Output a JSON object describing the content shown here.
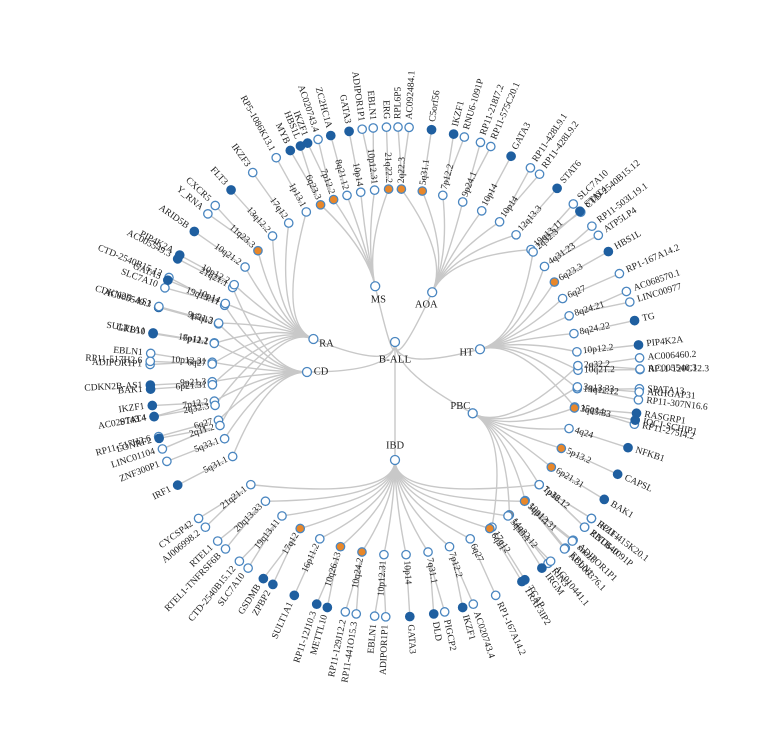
{
  "root": "B-ALL",
  "colors": {
    "edge": "#c8c8c8",
    "open": "#4a86c0",
    "filled": "#1f5fa0",
    "highlight": "#e8872a",
    "text": "#222222"
  },
  "branches": [
    {
      "name": "MS",
      "children": [
        {
          "label": "6q23.3",
          "st": "h",
          "genes": [
            {
              "label": "MYB",
              "st": "f"
            },
            {
              "label": "HBS1L",
              "st": "f"
            }
          ]
        },
        {
          "label": "7p12.2",
          "st": "h",
          "genes": [
            {
              "label": "IKZF1",
              "st": "f"
            },
            {
              "label": "AC020743.4",
              "st": "o"
            }
          ]
        },
        {
          "label": "8q21.12",
          "st": "o",
          "genes": [
            {
              "label": "ZC2HC1A",
              "st": "f"
            }
          ]
        },
        {
          "label": "10p14",
          "st": "o",
          "genes": [
            {
              "label": "GATA3",
              "st": "f"
            }
          ]
        },
        {
          "label": "10p12.31",
          "st": "o",
          "genes": [
            {
              "label": "ADIPOR1P1",
              "st": "o"
            },
            {
              "label": "EBLN1",
              "st": "o"
            }
          ]
        },
        {
          "label": "21q22.2",
          "st": "h",
          "genes": [
            {
              "label": "ERG",
              "st": "o"
            }
          ]
        }
      ]
    },
    {
      "name": "AOA",
      "children": [
        {
          "label": "2q22.3",
          "st": "h",
          "genes": [
            {
              "label": "RPL6P5",
              "st": "o"
            },
            {
              "label": "AC092484.1",
              "st": "o"
            }
          ]
        },
        {
          "label": "5q31.1",
          "st": "h",
          "genes": [
            {
              "label": "C5orf56",
              "st": "f"
            }
          ]
        },
        {
          "label": "7p12.2",
          "st": "o",
          "genes": [
            {
              "label": "IKZF1",
              "st": "f"
            },
            {
              "label": "RNU6-1091P",
              "st": "o"
            }
          ]
        },
        {
          "label": "9p24.1",
          "st": "o",
          "genes": [
            {
              "label": "RP11-218I7.2",
              "st": "o"
            },
            {
              "label": "RP11-575C20.1",
              "st": "o"
            }
          ]
        },
        {
          "label": "10p14",
          "st": "o",
          "genes": [
            {
              "label": "GATA3",
              "st": "f"
            }
          ]
        },
        {
          "label": "10p14",
          "st": "o",
          "genes": [
            {
              "label": "RP11-428L9.1",
              "st": "o"
            },
            {
              "label": "RP11-428L9.2",
              "st": "o"
            }
          ]
        },
        {
          "label": "12q13.3",
          "st": "o",
          "genes": [
            {
              "label": "STAT6",
              "st": "f"
            }
          ]
        },
        {
          "label": "19q13.11",
          "st": "o",
          "genes": [
            {
              "label": "SLC7A10",
              "st": "o"
            },
            {
              "label": "CTD-2540B15.12",
              "st": "o"
            }
          ]
        }
      ]
    },
    {
      "name": "HT",
      "children": [
        {
          "label": "2q32.3",
          "st": "o",
          "genes": [
            {
              "label": "STAT4",
              "st": "f"
            }
          ]
        },
        {
          "label": "4q31.23",
          "st": "o",
          "genes": [
            {
              "label": "RP11-503L19.1",
              "st": "o"
            },
            {
              "label": "ATP5LP4",
              "st": "o"
            }
          ]
        },
        {
          "label": "6q23.3",
          "st": "h",
          "genes": [
            {
              "label": "HBS1L",
              "st": "f"
            }
          ]
        },
        {
          "label": "6q27",
          "st": "o",
          "genes": [
            {
              "label": "RP1-167A14.2",
              "st": "o"
            }
          ]
        },
        {
          "label": "8q24.21",
          "st": "o",
          "genes": [
            {
              "label": "AC068570.1",
              "st": "o"
            },
            {
              "label": "LINC00977",
              "st": "o"
            }
          ]
        },
        {
          "label": "8q24.22",
          "st": "o",
          "genes": [
            {
              "label": "TG",
              "st": "f"
            }
          ]
        },
        {
          "label": "10p12.2",
          "st": "o",
          "genes": [
            {
              "label": "PIP4K2A",
              "st": "f"
            }
          ]
        },
        {
          "label": "10q21.2",
          "st": "o",
          "genes": [
            {
              "label": "RP11-120C12.3",
              "st": "o"
            }
          ]
        },
        {
          "label": "13q12.12",
          "st": "o",
          "genes": [
            {
              "label": "SPATA13",
              "st": "o"
            },
            {
              "label": "RP11-307N16.6",
              "st": "o"
            }
          ]
        },
        {
          "label": "15q14",
          "st": "o",
          "genes": [
            {
              "label": "RASGRP1",
              "st": "f"
            },
            {
              "label": "RP11-275I4.2",
              "st": "o"
            }
          ]
        }
      ]
    },
    {
      "name": "PBC",
      "children": [
        {
          "label": "2q32.2",
          "st": "o",
          "genes": [
            {
              "label": "AC006460.2",
              "st": "o"
            },
            {
              "label": "AC005540.3",
              "st": "o"
            }
          ]
        },
        {
          "label": "3q13.33",
          "st": "o",
          "genes": [
            {
              "label": "ARHGAP31",
              "st": "o"
            }
          ]
        },
        {
          "label": "3q25.33",
          "st": "h",
          "genes": [
            {
              "label": "IQCJ-SCHIP1",
              "st": "f"
            }
          ]
        },
        {
          "label": "4q24",
          "st": "o",
          "genes": [
            {
              "label": "NFKB1",
              "st": "f"
            }
          ]
        },
        {
          "label": "5p13.2",
          "st": "h",
          "genes": [
            {
              "label": "CAPSL",
              "st": "f"
            }
          ]
        },
        {
          "label": "6p21.31",
          "st": "h",
          "genes": [
            {
              "label": "BAK1",
              "st": "f"
            }
          ]
        },
        {
          "label": "7p12.1",
          "st": "o",
          "genes": [
            {
              "label": "IKZF1",
              "st": "f"
            },
            {
              "label": "RNU6-1091P",
              "st": "o"
            }
          ]
        },
        {
          "label": "10p12.31",
          "st": "o",
          "genes": [
            {
              "label": "ADIPOR1P1",
              "st": "o"
            },
            {
              "label": "EBLN1",
              "st": "o"
            }
          ]
        },
        {
          "label": "14q32.12",
          "st": "h",
          "genes": [
            {
              "label": "RIN3",
              "st": "o"
            }
          ]
        },
        {
          "label": "17q12",
          "st": "o",
          "genes": [
            {
              "label": "TCAP",
              "st": "f"
            }
          ]
        }
      ]
    },
    {
      "name": "IBD",
      "children": [
        {
          "label": "1p36.12",
          "st": "o",
          "genes": [
            {
              "label": "RP11-415K20.1",
              "st": "o"
            },
            {
              "label": "ZBTB40",
              "st": "o"
            }
          ]
        },
        {
          "label": "5q31.1",
          "st": "h",
          "genes": [
            {
              "label": "snoz6",
              "st": "o"
            },
            {
              "label": "AC006376.1",
              "st": "o"
            }
          ]
        },
        {
          "label": "5q35.1",
          "st": "o",
          "genes": [
            {
              "label": "AC010441.1",
              "st": "o"
            },
            {
              "label": "IRGM",
              "st": "f"
            }
          ]
        },
        {
          "label": "6q21",
          "st": "h",
          "genes": [
            {
              "label": "TRAF3IP2",
              "st": "f"
            }
          ]
        },
        {
          "label": "6q27",
          "st": "o",
          "genes": [
            {
              "label": "RP1-167A14.2",
              "st": "o"
            }
          ]
        },
        {
          "label": "7p12.2",
          "st": "o",
          "genes": [
            {
              "label": "AC020743.4",
              "st": "o"
            },
            {
              "label": "IKZF1",
              "st": "f"
            }
          ]
        },
        {
          "label": "7q31.1",
          "st": "o",
          "genes": [
            {
              "label": "PIGCP2",
              "st": "o"
            },
            {
              "label": "DLD",
              "st": "f"
            }
          ]
        },
        {
          "label": "10p14",
          "st": "o",
          "genes": [
            {
              "label": "GATA3",
              "st": "f"
            }
          ]
        },
        {
          "label": "10p12.31",
          "st": "o",
          "genes": [
            {
              "label": "ADIPOR1P1",
              "st": "o"
            },
            {
              "label": "EBLN1",
              "st": "o"
            }
          ]
        },
        {
          "label": "10q24.2",
          "st": "h",
          "genes": [
            {
              "label": "RP11-441O15.3",
              "st": "o"
            },
            {
              "label": "RP11-129J12.2",
              "st": "o"
            }
          ]
        },
        {
          "label": "10q26.13",
          "st": "h",
          "genes": [
            {
              "label": "METTL10",
              "st": "f"
            },
            {
              "label": "RP11-12J10.3",
              "st": "f"
            }
          ]
        },
        {
          "label": "16p11.2",
          "st": "o",
          "genes": [
            {
              "label": "SULT1A1",
              "st": "f"
            }
          ]
        },
        {
          "label": "17q12",
          "st": "h",
          "genes": [
            {
              "label": "ZPBP2",
              "st": "f"
            },
            {
              "label": "GSDMB",
              "st": "f"
            }
          ]
        },
        {
          "label": "19q13.11",
          "st": "o",
          "genes": [
            {
              "label": "SLC7A10",
              "st": "o"
            },
            {
              "label": "CTD-2540B15.12",
              "st": "o"
            }
          ]
        },
        {
          "label": "20q13.33",
          "st": "o",
          "genes": [
            {
              "label": "RTEL1-TNFRSF6B",
              "st": "o"
            },
            {
              "label": "RTEL1",
              "st": "o"
            }
          ]
        },
        {
          "label": "21q21.1",
          "st": "o",
          "genes": [
            {
              "label": "AJ006998.2",
              "st": "o"
            },
            {
              "label": "CYCSP42",
              "st": "o"
            }
          ]
        }
      ]
    },
    {
      "name": "CD",
      "children": [
        {
          "label": "5q31.1",
          "st": "o",
          "genes": [
            {
              "label": "IRF1",
              "st": "f"
            }
          ]
        },
        {
          "label": "5q33.1",
          "st": "o",
          "genes": [
            {
              "label": "ZNF300P1",
              "st": "o"
            }
          ]
        },
        {
          "label": "6q27",
          "st": "o",
          "genes": [
            {
              "label": "RP11-517H2.6",
              "st": "o"
            }
          ]
        },
        {
          "label": "7p12.2",
          "st": "o",
          "genes": [
            {
              "label": "AC020743.4",
              "st": "o"
            },
            {
              "label": "IKZF1",
              "st": "f"
            }
          ]
        },
        {
          "label": "9p21.3",
          "st": "o",
          "genes": [
            {
              "label": "CDKN2B-AS1",
              "st": "f"
            }
          ]
        },
        {
          "label": "10p12.31",
          "st": "o",
          "genes": [
            {
              "label": "ADIPOR1P1",
              "st": "o"
            },
            {
              "label": "EBLN1",
              "st": "o"
            }
          ]
        },
        {
          "label": "16p11.2",
          "st": "o",
          "genes": [
            {
              "label": "SULT1A1",
              "st": "f"
            }
          ]
        },
        {
          "label": "17q12",
          "st": "o",
          "genes": [
            {
              "label": "AC005549.3",
              "st": "f"
            }
          ]
        },
        {
          "label": "19q13.11",
          "st": "o",
          "genes": [
            {
              "label": "SLC7A10",
              "st": "o"
            },
            {
              "label": "CTD-2540B15.12",
              "st": "o"
            }
          ]
        },
        {
          "label": "21q21.1",
          "st": "o",
          "genes": [
            {
              "label": "AC005549.3",
              "st": "f"
            }
          ]
        }
      ]
    },
    {
      "name": "RA",
      "children": [
        {
          "label": "2q11.2",
          "st": "o",
          "genes": [
            {
              "label": "LINC01104",
              "st": "o"
            },
            {
              "label": "LONRF2",
              "st": "f"
            }
          ]
        },
        {
          "label": "2q32.3",
          "st": "o",
          "genes": [
            {
              "label": "STAT4",
              "st": "f"
            }
          ]
        },
        {
          "label": "6p21.31",
          "st": "o",
          "genes": [
            {
              "label": "BAK1",
              "st": "f"
            }
          ]
        },
        {
          "label": "6q27",
          "st": "o",
          "genes": [
            {
              "label": "RP11-517H2.6",
              "st": "o"
            }
          ]
        },
        {
          "label": "7p12.1",
          "st": "o",
          "genes": [
            {
              "label": "GRB10",
              "st": "f"
            }
          ]
        },
        {
          "label": "9p21.3",
          "st": "o",
          "genes": [
            {
              "label": "CDKN2B-AS1",
              "st": "o"
            }
          ]
        },
        {
          "label": "10p14",
          "st": "o",
          "genes": [
            {
              "label": "GATA3",
              "st": "f"
            }
          ]
        },
        {
          "label": "10p12.2",
          "st": "o",
          "genes": [
            {
              "label": "PIP4K2A",
              "st": "f"
            }
          ]
        },
        {
          "label": "10q21.2",
          "st": "o",
          "genes": [
            {
              "label": "ARID5B",
              "st": "f"
            }
          ]
        },
        {
          "label": "11q23.3",
          "st": "h",
          "genes": [
            {
              "label": "Y_RNA",
              "st": "o"
            },
            {
              "label": "CXCR5",
              "st": "o"
            }
          ]
        },
        {
          "label": "13q12.2",
          "st": "o",
          "genes": [
            {
              "label": "FLT3",
              "st": "f"
            }
          ]
        },
        {
          "label": "17q12",
          "st": "o",
          "genes": [
            {
              "label": "IKZF3",
              "st": "o"
            }
          ]
        },
        {
          "label": "1p13.1",
          "st": "o",
          "genes": [
            {
              "label": "RP5-1086K13.1",
              "st": "o"
            }
          ]
        }
      ]
    }
  ]
}
